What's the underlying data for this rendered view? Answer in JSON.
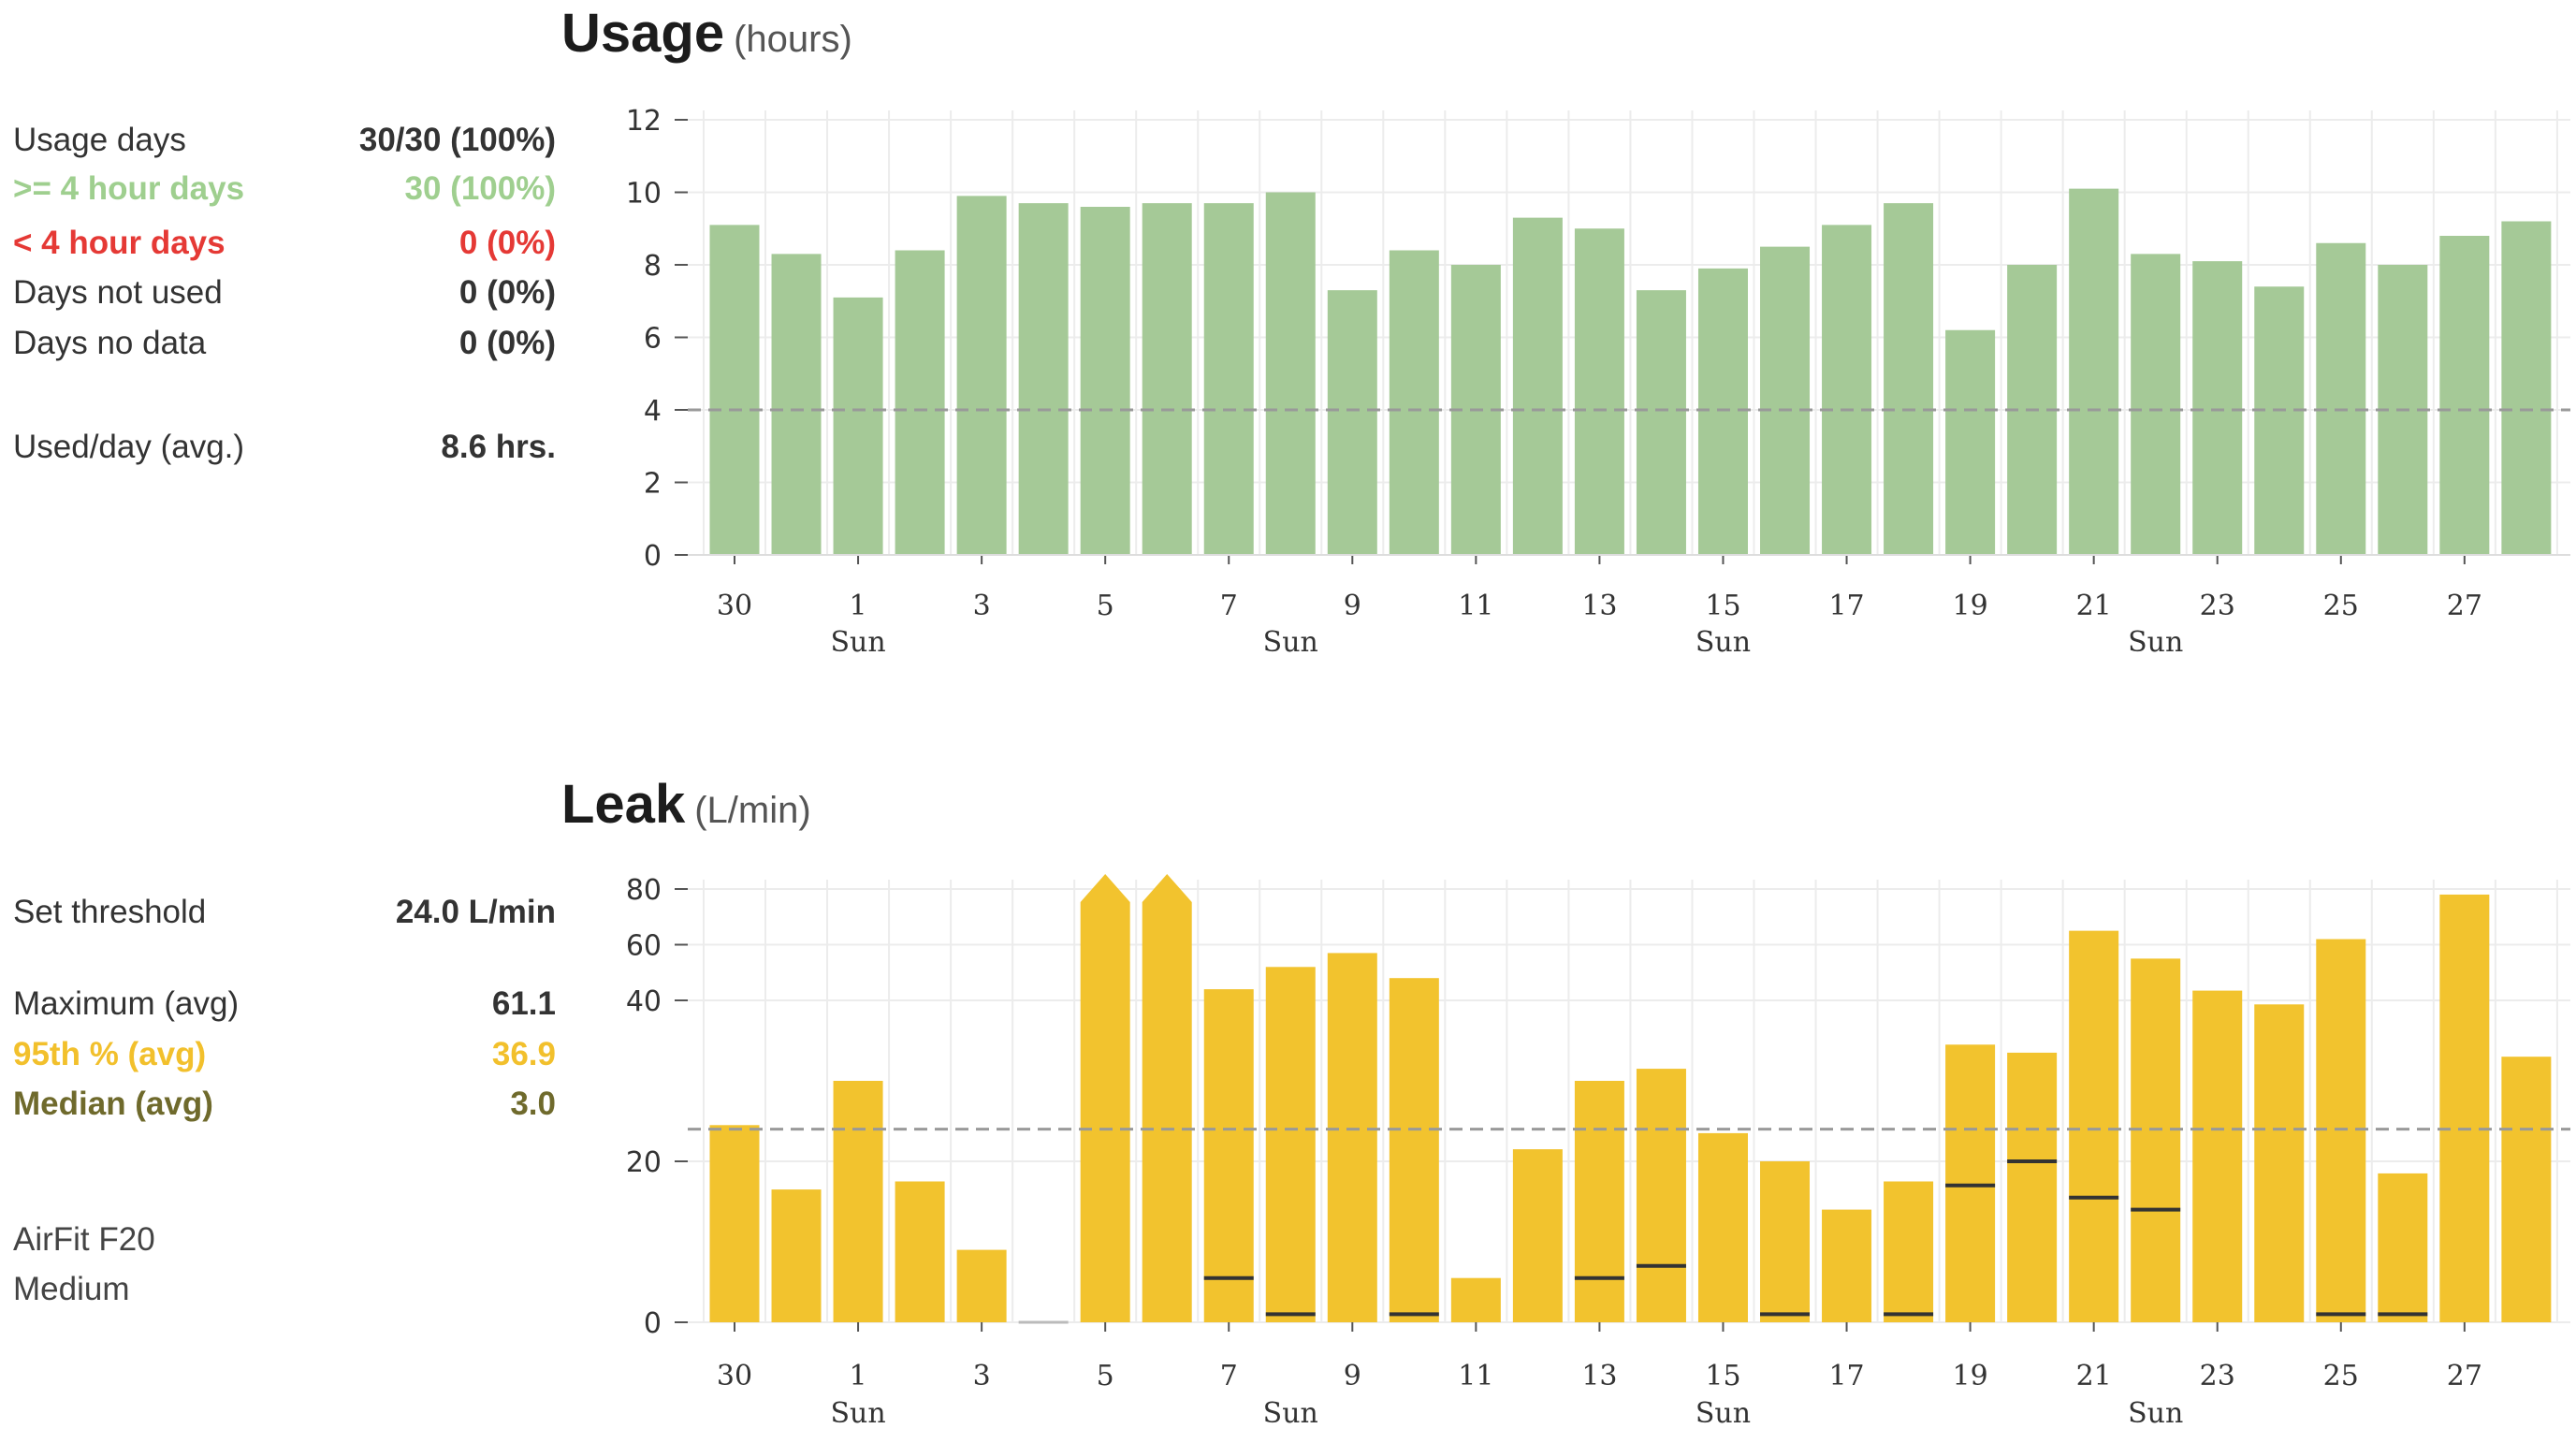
{
  "usage": {
    "title": "Usage",
    "unit": "(hours)",
    "stats": [
      {
        "label": "Usage days",
        "value": "30/30 (100%)",
        "style": "dark"
      },
      {
        "label": ">= 4 hour days",
        "value": "30 (100%)",
        "style": "green"
      },
      {
        "label": "< 4 hour days",
        "value": "0 (0%)",
        "style": "red"
      },
      {
        "label": "Days not used",
        "value": "0 (0%)",
        "style": "dark"
      },
      {
        "label": "Days no data",
        "value": "0 (0%)",
        "style": "dark"
      },
      {
        "label": "Used/day (avg.)",
        "value": "8.6 hrs.",
        "style": "dark"
      }
    ]
  },
  "leak": {
    "title": "Leak",
    "unit": "(L/min)",
    "stats": [
      {
        "label": "Set threshold",
        "value": "24.0 L/min",
        "style": "dark"
      },
      {
        "label": "Maximum (avg)",
        "value": "61.1",
        "style": "dark"
      },
      {
        "label": "95th % (avg)",
        "value": "36.9",
        "style": "yellow"
      },
      {
        "label": "Median (avg)",
        "value": "3.0",
        "style": "olive"
      }
    ],
    "mask_name": "AirFit F20",
    "mask_size": "Medium"
  },
  "chart_data": [
    {
      "type": "bar",
      "title": "Usage",
      "ylabel": "(hours)",
      "categories": [
        "30",
        "31",
        "1",
        "2",
        "3",
        "4",
        "5",
        "6",
        "7",
        "8",
        "9",
        "10",
        "11",
        "12",
        "13",
        "14",
        "15",
        "16",
        "17",
        "18",
        "19",
        "20",
        "21",
        "22",
        "23",
        "24",
        "25",
        "26",
        "27",
        "28"
      ],
      "x_tick_labels": [
        "30",
        "1",
        "3",
        "5",
        "7",
        "9",
        "11",
        "13",
        "15",
        "17",
        "19",
        "21",
        "23",
        "25",
        "27"
      ],
      "x_sub_labels": [
        {
          "category": "1",
          "label": "Sun"
        },
        {
          "category": "8",
          "label": "Sun"
        },
        {
          "category": "15",
          "label": "Sun"
        },
        {
          "category": "22",
          "label": "Sun"
        }
      ],
      "values": [
        9.1,
        8.3,
        7.1,
        8.4,
        9.9,
        9.7,
        9.6,
        9.7,
        9.7,
        10.0,
        7.3,
        8.4,
        8.0,
        9.3,
        9.0,
        7.3,
        7.9,
        8.5,
        9.1,
        9.7,
        6.2,
        8.0,
        10.1,
        8.3,
        8.1,
        7.4,
        8.6,
        8.0,
        8.8,
        9.2
      ],
      "ylim": [
        0,
        12
      ],
      "yticks": [
        0,
        2,
        4,
        6,
        8,
        10,
        12
      ],
      "reference_line": 4,
      "color": "#a5c997",
      "grid": true
    },
    {
      "type": "bar",
      "title": "Leak",
      "ylabel": "(L/min)",
      "categories": [
        "30",
        "31",
        "1",
        "2",
        "3",
        "4",
        "5",
        "6",
        "7",
        "8",
        "9",
        "10",
        "11",
        "12",
        "13",
        "14",
        "15",
        "16",
        "17",
        "18",
        "19",
        "20",
        "21",
        "22",
        "23",
        "24",
        "25",
        "26",
        "27",
        "28"
      ],
      "x_tick_labels": [
        "30",
        "1",
        "3",
        "5",
        "7",
        "9",
        "11",
        "13",
        "15",
        "17",
        "19",
        "21",
        "23",
        "25",
        "27"
      ],
      "x_sub_labels": [
        {
          "category": "1",
          "label": "Sun"
        },
        {
          "category": "8",
          "label": "Sun"
        },
        {
          "category": "15",
          "label": "Sun"
        },
        {
          "category": "22",
          "label": "Sun"
        }
      ],
      "series": [
        {
          "name": "95th %",
          "values": [
            24.5,
            16.5,
            30,
            17.5,
            9,
            0,
            null,
            null,
            44,
            52,
            57,
            48,
            5.5,
            21.5,
            30,
            31.5,
            23.5,
            20,
            14,
            17.5,
            34.5,
            33.5,
            65,
            55,
            43.5,
            39.5,
            62,
            18.5,
            78,
            33
          ]
        },
        {
          "name": "Median",
          "values": [
            null,
            null,
            null,
            null,
            null,
            null,
            null,
            null,
            5.5,
            1,
            null,
            1,
            null,
            null,
            5.5,
            7,
            null,
            1,
            null,
            1,
            17,
            20,
            15.5,
            14,
            null,
            null,
            1,
            1,
            null,
            null
          ]
        }
      ],
      "exceeds_scale": [
        "5",
        "6"
      ],
      "ylim": [
        0,
        80
      ],
      "yticks": [
        0,
        20,
        40,
        60,
        80
      ],
      "scale": "broken (compressed above 40)",
      "reference_line": 24,
      "color": "#f2c32e",
      "grid": true
    }
  ],
  "colors": {
    "usage_bar": "#a5c997",
    "leak_bar": "#f2c32e",
    "median_tick": "#333333",
    "grid": "#ececec",
    "threshold": "#999999"
  }
}
